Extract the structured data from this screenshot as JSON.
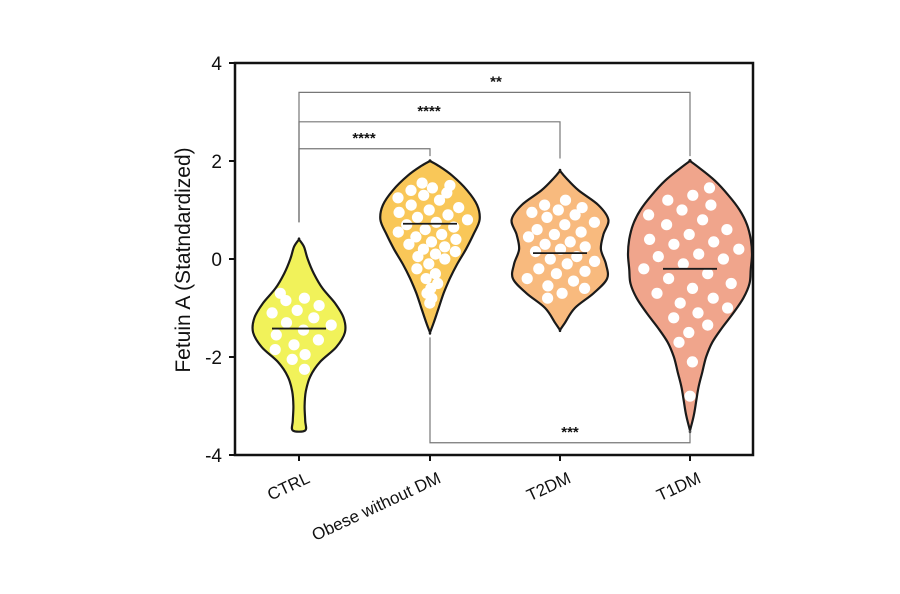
{
  "chart_data": {
    "type": "violin",
    "title": "",
    "xlabel": "",
    "ylabel": "Fetuin A (Statndardized)",
    "ylim": [
      -4,
      4
    ],
    "yticks": [
      4,
      2,
      0,
      -2,
      -4
    ],
    "ytick_labels": [
      "4",
      "2",
      "0",
      "-2",
      "-4"
    ],
    "grid": false,
    "legend": "none",
    "categories": [
      "CTRL",
      "Obese without DM",
      "T2DM",
      "T1DM"
    ],
    "series": [
      {
        "category": "CTRL",
        "color": "#f1f25a",
        "median": -1.42,
        "min": -3.5,
        "max": 0.4,
        "profile": [
          [
            -3.5,
            0.1
          ],
          [
            -3.3,
            0.1
          ],
          [
            -3.0,
            0.09
          ],
          [
            -2.7,
            0.11
          ],
          [
            -2.4,
            0.18
          ],
          [
            -2.1,
            0.34
          ],
          [
            -1.8,
            0.6
          ],
          [
            -1.5,
            0.74
          ],
          [
            -1.2,
            0.72
          ],
          [
            -0.9,
            0.58
          ],
          [
            -0.6,
            0.38
          ],
          [
            -0.3,
            0.24
          ],
          [
            0.0,
            0.14
          ],
          [
            0.25,
            0.08
          ],
          [
            0.4,
            0.0
          ]
        ],
        "points": [
          -0.7,
          -0.8,
          -0.85,
          -0.95,
          -1.05,
          -1.1,
          -1.2,
          -1.3,
          -1.35,
          -1.45,
          -1.55,
          -1.65,
          -1.75,
          -1.85,
          -1.95,
          -2.05,
          -2.25
        ]
      },
      {
        "category": "Obese without DM",
        "color": "#f9c758",
        "median": 0.72,
        "min": -1.5,
        "max": 2.0,
        "profile": [
          [
            -1.5,
            0.0
          ],
          [
            -1.3,
            0.06
          ],
          [
            -1.0,
            0.14
          ],
          [
            -0.7,
            0.22
          ],
          [
            -0.4,
            0.32
          ],
          [
            -0.1,
            0.44
          ],
          [
            0.2,
            0.58
          ],
          [
            0.5,
            0.7
          ],
          [
            0.8,
            0.8
          ],
          [
            1.1,
            0.76
          ],
          [
            1.4,
            0.6
          ],
          [
            1.7,
            0.36
          ],
          [
            1.9,
            0.14
          ],
          [
            2.0,
            0.0
          ]
        ],
        "points": [
          1.55,
          1.5,
          1.45,
          1.4,
          1.35,
          1.3,
          1.25,
          1.2,
          1.1,
          1.05,
          1.0,
          0.95,
          0.9,
          0.85,
          0.8,
          0.75,
          0.7,
          0.65,
          0.6,
          0.55,
          0.5,
          0.45,
          0.4,
          0.35,
          0.3,
          0.25,
          0.2,
          0.15,
          0.1,
          0.05,
          0.0,
          -0.1,
          -0.2,
          -0.3,
          -0.4,
          -0.5,
          -0.6,
          -0.7,
          -0.8,
          -0.9
        ]
      },
      {
        "category": "T2DM",
        "color": "#f8ba7e",
        "median": 0.12,
        "min": -1.45,
        "max": 1.8,
        "profile": [
          [
            -1.45,
            0.0
          ],
          [
            -1.3,
            0.08
          ],
          [
            -1.0,
            0.24
          ],
          [
            -0.7,
            0.54
          ],
          [
            -0.4,
            0.76
          ],
          [
            -0.1,
            0.74
          ],
          [
            0.2,
            0.66
          ],
          [
            0.5,
            0.7
          ],
          [
            0.8,
            0.78
          ],
          [
            1.1,
            0.62
          ],
          [
            1.4,
            0.3
          ],
          [
            1.65,
            0.1
          ],
          [
            1.8,
            0.0
          ]
        ],
        "points": [
          1.2,
          1.1,
          1.05,
          1.0,
          0.95,
          0.9,
          0.85,
          0.75,
          0.7,
          0.6,
          0.55,
          0.5,
          0.45,
          0.35,
          0.3,
          0.25,
          0.2,
          0.15,
          0.05,
          0.0,
          -0.05,
          -0.1,
          -0.2,
          -0.25,
          -0.3,
          -0.4,
          -0.45,
          -0.55,
          -0.6,
          -0.7,
          -0.8
        ]
      },
      {
        "category": "T1DM",
        "color": "#f0a58c",
        "median": -0.2,
        "min": -3.5,
        "max": 2.0,
        "profile": [
          [
            -3.5,
            0.0
          ],
          [
            -3.2,
            0.06
          ],
          [
            -2.9,
            0.1
          ],
          [
            -2.6,
            0.14
          ],
          [
            -2.3,
            0.2
          ],
          [
            -2.0,
            0.26
          ],
          [
            -1.7,
            0.36
          ],
          [
            -1.4,
            0.52
          ],
          [
            -1.1,
            0.7
          ],
          [
            -0.8,
            0.86
          ],
          [
            -0.5,
            0.96
          ],
          [
            -0.2,
            0.98
          ],
          [
            0.1,
            1.0
          ],
          [
            0.4,
            0.98
          ],
          [
            0.7,
            0.92
          ],
          [
            1.0,
            0.8
          ],
          [
            1.3,
            0.62
          ],
          [
            1.6,
            0.4
          ],
          [
            1.85,
            0.16
          ],
          [
            2.0,
            0.0
          ]
        ],
        "points": [
          1.45,
          1.3,
          1.2,
          1.1,
          1.0,
          0.9,
          0.8,
          0.7,
          0.6,
          0.5,
          0.4,
          0.35,
          0.3,
          0.2,
          0.1,
          0.05,
          0.0,
          -0.1,
          -0.2,
          -0.3,
          -0.4,
          -0.5,
          -0.6,
          -0.7,
          -0.8,
          -0.9,
          -1.0,
          -1.1,
          -1.2,
          -1.35,
          -1.5,
          -1.7,
          -2.1,
          -2.8
        ]
      }
    ],
    "comparisons": [
      {
        "from": "CTRL",
        "to": "Obese without DM",
        "y": 2.25,
        "label": "****"
      },
      {
        "from": "CTRL",
        "to": "T2DM",
        "y": 2.8,
        "label": "****"
      },
      {
        "from": "CTRL",
        "to": "T1DM",
        "y": 3.4,
        "label": "**"
      },
      {
        "from": "Obese without DM",
        "to": "T1DM",
        "y": -3.75,
        "label": "***"
      }
    ]
  }
}
